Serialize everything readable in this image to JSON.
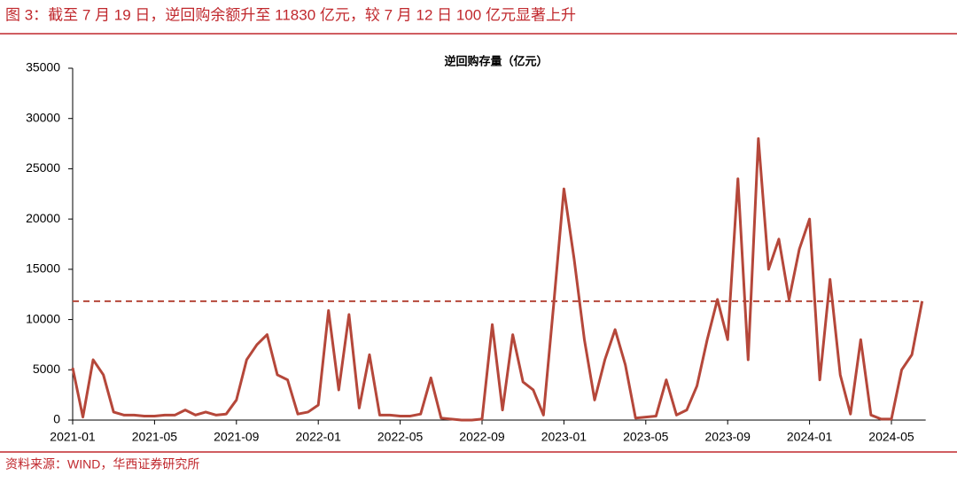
{
  "chart_data": {
    "type": "line",
    "title": "图 3：截至 7 月 19 日，逆回购余额升至 11830 亿元，较 7 月 12 日 100 亿元显著上升",
    "source": "资料来源：WIND，华西证券研究所",
    "categories": [
      "2021-01",
      null,
      null,
      null,
      null,
      null,
      null,
      null,
      "2021-05",
      null,
      null,
      null,
      null,
      null,
      null,
      null,
      "2021-09",
      null,
      null,
      null,
      null,
      null,
      null,
      null,
      "2022-01",
      null,
      null,
      null,
      null,
      null,
      null,
      null,
      "2022-05",
      null,
      null,
      null,
      null,
      null,
      null,
      null,
      "2022-09",
      null,
      null,
      null,
      null,
      null,
      null,
      null,
      "2023-01",
      null,
      null,
      null,
      null,
      null,
      null,
      null,
      "2023-05",
      null,
      null,
      null,
      null,
      null,
      null,
      null,
      "2023-09",
      null,
      null,
      null,
      null,
      null,
      null,
      null,
      "2024-01",
      null,
      null,
      null,
      null,
      null,
      null,
      null,
      "2024-05",
      null,
      null,
      null
    ],
    "series": [
      {
        "name": "逆回购存量（亿元）",
        "color": "#b5473a",
        "values": [
          5200,
          300,
          6000,
          4500,
          800,
          500,
          500,
          400,
          400,
          500,
          500,
          1000,
          500,
          800,
          500,
          600,
          2000,
          6000,
          7500,
          8500,
          4500,
          4000,
          600,
          800,
          1500,
          10900,
          3000,
          10500,
          1200,
          6500,
          500,
          500,
          400,
          400,
          600,
          4200,
          200,
          100,
          0,
          0,
          100,
          9500,
          1000,
          8500,
          3800,
          3000,
          500,
          11500,
          23000,
          16000,
          8000,
          2000,
          6000,
          9000,
          5500,
          200,
          300,
          400,
          4000,
          500,
          1000,
          3400,
          8000,
          12000,
          8000,
          24000,
          6000,
          28000,
          15000,
          18000,
          12000,
          17000,
          20000,
          4000,
          14000,
          4500,
          600,
          8000,
          500,
          100,
          100,
          5000,
          6500,
          11830
        ]
      }
    ],
    "reference_line": 11830,
    "reference_color": "#b5473a",
    "ylim": [
      0,
      35000
    ],
    "yticks": [
      0,
      5000,
      10000,
      15000,
      20000,
      25000,
      30000,
      35000
    ]
  }
}
